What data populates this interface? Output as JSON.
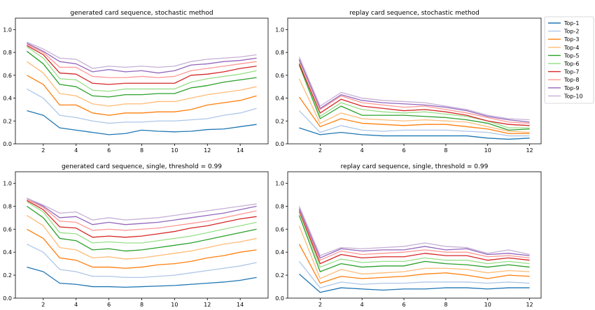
{
  "legend": {
    "entries": [
      "Top-1",
      "Top-2",
      "Top-3",
      "Top-4",
      "Top-5",
      "Top-6",
      "Top-7",
      "Top-8",
      "Top-9",
      "Top-10"
    ],
    "colors": [
      "#1f77b4",
      "#aec7e8",
      "#ff7f0e",
      "#ffbb78",
      "#2ca02c",
      "#98df8a",
      "#d62728",
      "#ff9896",
      "#9467bd",
      "#c5b0d5"
    ]
  },
  "chart_data": [
    {
      "type": "line",
      "title": "generated card sequence, stochastic method",
      "xlabel": "",
      "ylabel": "",
      "xlim": [
        0.3,
        15.7
      ],
      "ylim": [
        0,
        1.1
      ],
      "xticks": [
        2,
        4,
        6,
        8,
        10,
        12,
        14
      ],
      "yticks": [
        0.0,
        0.2,
        0.4,
        0.6,
        0.8,
        1.0
      ],
      "x": [
        1,
        2,
        3,
        4,
        5,
        6,
        7,
        8,
        9,
        10,
        11,
        12,
        13,
        14,
        15
      ],
      "series": [
        {
          "name": "Top-1",
          "values": [
            0.29,
            0.25,
            0.14,
            0.12,
            0.1,
            0.08,
            0.09,
            0.12,
            0.11,
            0.105,
            0.11,
            0.125,
            0.13,
            0.15,
            0.17
          ]
        },
        {
          "name": "Top-2",
          "values": [
            0.48,
            0.4,
            0.25,
            0.23,
            0.2,
            0.18,
            0.19,
            0.19,
            0.2,
            0.2,
            0.21,
            0.22,
            0.25,
            0.27,
            0.31
          ]
        },
        {
          "name": "Top-3",
          "values": [
            0.6,
            0.52,
            0.34,
            0.34,
            0.27,
            0.25,
            0.27,
            0.27,
            0.28,
            0.28,
            0.3,
            0.34,
            0.36,
            0.38,
            0.42
          ]
        },
        {
          "name": "Top-4",
          "values": [
            0.72,
            0.62,
            0.44,
            0.42,
            0.35,
            0.33,
            0.35,
            0.35,
            0.37,
            0.37,
            0.4,
            0.43,
            0.45,
            0.47,
            0.5
          ]
        },
        {
          "name": "Top-5",
          "values": [
            0.81,
            0.7,
            0.52,
            0.5,
            0.42,
            0.41,
            0.43,
            0.43,
            0.44,
            0.44,
            0.49,
            0.51,
            0.54,
            0.56,
            0.58
          ]
        },
        {
          "name": "Top-6",
          "values": [
            0.85,
            0.75,
            0.57,
            0.56,
            0.47,
            0.46,
            0.48,
            0.48,
            0.48,
            0.48,
            0.54,
            0.57,
            0.59,
            0.61,
            0.64
          ]
        },
        {
          "name": "Top-7",
          "values": [
            0.86,
            0.78,
            0.62,
            0.61,
            0.53,
            0.52,
            0.53,
            0.53,
            0.53,
            0.53,
            0.6,
            0.61,
            0.63,
            0.66,
            0.68
          ]
        },
        {
          "name": "Top-8",
          "values": [
            0.87,
            0.8,
            0.67,
            0.67,
            0.59,
            0.58,
            0.58,
            0.59,
            0.58,
            0.59,
            0.64,
            0.66,
            0.68,
            0.7,
            0.72
          ]
        },
        {
          "name": "Top-9",
          "values": [
            0.88,
            0.81,
            0.72,
            0.7,
            0.63,
            0.65,
            0.63,
            0.64,
            0.62,
            0.64,
            0.69,
            0.7,
            0.72,
            0.73,
            0.75
          ]
        },
        {
          "name": "Top-10",
          "values": [
            0.89,
            0.83,
            0.75,
            0.74,
            0.66,
            0.68,
            0.67,
            0.68,
            0.67,
            0.68,
            0.72,
            0.74,
            0.75,
            0.76,
            0.78
          ]
        }
      ]
    },
    {
      "type": "line",
      "title": "replay card sequence, stochastic method",
      "xlabel": "",
      "ylabel": "",
      "xlim": [
        0.45,
        12.55
      ],
      "ylim": [
        0,
        1.1
      ],
      "xticks": [
        2,
        4,
        6,
        8,
        10,
        12
      ],
      "yticks": [
        0.0,
        0.2,
        0.4,
        0.6,
        0.8,
        1.0
      ],
      "x": [
        1,
        2,
        3,
        4,
        5,
        6,
        7,
        8,
        9,
        10,
        11,
        12
      ],
      "series": [
        {
          "name": "Top-1",
          "values": [
            0.14,
            0.08,
            0.1,
            0.08,
            0.07,
            0.07,
            0.07,
            0.07,
            0.07,
            0.05,
            0.04,
            0.05
          ]
        },
        {
          "name": "Top-2",
          "values": [
            0.29,
            0.1,
            0.16,
            0.12,
            0.11,
            0.12,
            0.12,
            0.12,
            0.11,
            0.1,
            0.07,
            0.07
          ]
        },
        {
          "name": "Top-3",
          "values": [
            0.41,
            0.15,
            0.22,
            0.18,
            0.17,
            0.16,
            0.17,
            0.17,
            0.15,
            0.13,
            0.09,
            0.09
          ]
        },
        {
          "name": "Top-4",
          "values": [
            0.57,
            0.18,
            0.27,
            0.22,
            0.21,
            0.2,
            0.21,
            0.2,
            0.19,
            0.15,
            0.11,
            0.1
          ]
        },
        {
          "name": "Top-5",
          "values": [
            0.69,
            0.22,
            0.33,
            0.25,
            0.25,
            0.25,
            0.24,
            0.23,
            0.21,
            0.18,
            0.12,
            0.13
          ]
        },
        {
          "name": "Top-6",
          "values": [
            0.71,
            0.24,
            0.36,
            0.3,
            0.28,
            0.27,
            0.28,
            0.26,
            0.24,
            0.2,
            0.14,
            0.14
          ]
        },
        {
          "name": "Top-7",
          "values": [
            0.7,
            0.27,
            0.39,
            0.33,
            0.31,
            0.29,
            0.3,
            0.28,
            0.25,
            0.2,
            0.17,
            0.16
          ]
        },
        {
          "name": "Top-8",
          "values": [
            0.73,
            0.3,
            0.42,
            0.36,
            0.34,
            0.32,
            0.33,
            0.3,
            0.27,
            0.23,
            0.19,
            0.18
          ]
        },
        {
          "name": "Top-9",
          "values": [
            0.74,
            0.31,
            0.43,
            0.38,
            0.36,
            0.35,
            0.34,
            0.32,
            0.29,
            0.24,
            0.21,
            0.19
          ]
        },
        {
          "name": "Top-10",
          "values": [
            0.76,
            0.33,
            0.45,
            0.4,
            0.38,
            0.37,
            0.36,
            0.33,
            0.3,
            0.25,
            0.22,
            0.21
          ]
        }
      ]
    },
    {
      "type": "line",
      "title": "generated card sequence, single, threshold = 0.99",
      "xlabel": "",
      "ylabel": "",
      "xlim": [
        0.3,
        15.7
      ],
      "ylim": [
        0,
        1.1
      ],
      "xticks": [
        2,
        4,
        6,
        8,
        10,
        12,
        14
      ],
      "yticks": [
        0.0,
        0.2,
        0.4,
        0.6,
        0.8,
        1.0
      ],
      "x": [
        1,
        2,
        3,
        4,
        5,
        6,
        7,
        8,
        9,
        10,
        11,
        12,
        13,
        14,
        15
      ],
      "series": [
        {
          "name": "Top-1",
          "values": [
            0.27,
            0.23,
            0.13,
            0.12,
            0.1,
            0.1,
            0.095,
            0.1,
            0.105,
            0.11,
            0.12,
            0.13,
            0.14,
            0.155,
            0.18
          ]
        },
        {
          "name": "Top-2",
          "values": [
            0.47,
            0.4,
            0.25,
            0.23,
            0.19,
            0.19,
            0.18,
            0.18,
            0.19,
            0.2,
            0.22,
            0.24,
            0.26,
            0.28,
            0.31
          ]
        },
        {
          "name": "Top-3",
          "values": [
            0.6,
            0.52,
            0.35,
            0.33,
            0.27,
            0.27,
            0.26,
            0.27,
            0.29,
            0.3,
            0.32,
            0.35,
            0.37,
            0.4,
            0.42
          ]
        },
        {
          "name": "Top-4",
          "values": [
            0.72,
            0.63,
            0.44,
            0.42,
            0.35,
            0.36,
            0.34,
            0.35,
            0.37,
            0.39,
            0.41,
            0.44,
            0.47,
            0.49,
            0.52
          ]
        },
        {
          "name": "Top-5",
          "values": [
            0.8,
            0.7,
            0.52,
            0.5,
            0.42,
            0.43,
            0.41,
            0.42,
            0.44,
            0.46,
            0.48,
            0.51,
            0.54,
            0.57,
            0.6
          ]
        },
        {
          "name": "Top-6",
          "values": [
            0.84,
            0.75,
            0.57,
            0.56,
            0.48,
            0.49,
            0.48,
            0.48,
            0.5,
            0.52,
            0.54,
            0.57,
            0.6,
            0.63,
            0.66
          ]
        },
        {
          "name": "Top-7",
          "values": [
            0.85,
            0.77,
            0.62,
            0.61,
            0.53,
            0.54,
            0.53,
            0.54,
            0.56,
            0.58,
            0.61,
            0.63,
            0.66,
            0.69,
            0.71
          ]
        },
        {
          "name": "Top-8",
          "values": [
            0.86,
            0.79,
            0.67,
            0.66,
            0.59,
            0.6,
            0.59,
            0.6,
            0.61,
            0.63,
            0.65,
            0.67,
            0.7,
            0.73,
            0.76
          ]
        },
        {
          "name": "Top-9",
          "values": [
            0.87,
            0.8,
            0.7,
            0.71,
            0.64,
            0.66,
            0.64,
            0.65,
            0.66,
            0.68,
            0.7,
            0.72,
            0.74,
            0.77,
            0.8
          ]
        },
        {
          "name": "Top-10",
          "values": [
            0.87,
            0.81,
            0.74,
            0.75,
            0.68,
            0.7,
            0.68,
            0.69,
            0.7,
            0.72,
            0.74,
            0.76,
            0.78,
            0.8,
            0.82
          ]
        }
      ]
    },
    {
      "type": "line",
      "title": "replay card sequence, single, threshold = 0.99",
      "xlabel": "",
      "ylabel": "",
      "xlim": [
        0.45,
        12.55
      ],
      "ylim": [
        0,
        1.1
      ],
      "xticks": [
        2,
        4,
        6,
        8,
        10,
        12
      ],
      "yticks": [
        0.0,
        0.2,
        0.4,
        0.6,
        0.8,
        1.0
      ],
      "x": [
        1,
        2,
        3,
        4,
        5,
        6,
        7,
        8,
        9,
        10,
        11,
        12
      ],
      "series": [
        {
          "name": "Top-1",
          "values": [
            0.21,
            0.05,
            0.09,
            0.08,
            0.07,
            0.08,
            0.08,
            0.09,
            0.09,
            0.08,
            0.09,
            0.09
          ]
        },
        {
          "name": "Top-2",
          "values": [
            0.32,
            0.09,
            0.14,
            0.12,
            0.13,
            0.13,
            0.14,
            0.14,
            0.14,
            0.13,
            0.14,
            0.13
          ]
        },
        {
          "name": "Top-3",
          "values": [
            0.47,
            0.13,
            0.19,
            0.17,
            0.18,
            0.19,
            0.21,
            0.22,
            0.2,
            0.17,
            0.2,
            0.19
          ]
        },
        {
          "name": "Top-4",
          "values": [
            0.63,
            0.17,
            0.25,
            0.21,
            0.22,
            0.23,
            0.26,
            0.26,
            0.25,
            0.22,
            0.24,
            0.23
          ]
        },
        {
          "name": "Top-5",
          "values": [
            0.72,
            0.23,
            0.3,
            0.27,
            0.28,
            0.28,
            0.32,
            0.3,
            0.29,
            0.27,
            0.29,
            0.27
          ]
        },
        {
          "name": "Top-6",
          "values": [
            0.75,
            0.27,
            0.34,
            0.31,
            0.32,
            0.32,
            0.35,
            0.33,
            0.33,
            0.3,
            0.32,
            0.3
          ]
        },
        {
          "name": "Top-7",
          "values": [
            0.76,
            0.3,
            0.38,
            0.35,
            0.36,
            0.36,
            0.39,
            0.37,
            0.37,
            0.33,
            0.35,
            0.33
          ]
        },
        {
          "name": "Top-8",
          "values": [
            0.77,
            0.33,
            0.41,
            0.38,
            0.39,
            0.4,
            0.42,
            0.4,
            0.4,
            0.36,
            0.37,
            0.35
          ]
        },
        {
          "name": "Top-9",
          "values": [
            0.78,
            0.35,
            0.43,
            0.41,
            0.42,
            0.42,
            0.45,
            0.42,
            0.43,
            0.38,
            0.39,
            0.37
          ]
        },
        {
          "name": "Top-10",
          "values": [
            0.8,
            0.37,
            0.44,
            0.43,
            0.44,
            0.45,
            0.48,
            0.45,
            0.44,
            0.39,
            0.42,
            0.38
          ]
        }
      ]
    }
  ]
}
